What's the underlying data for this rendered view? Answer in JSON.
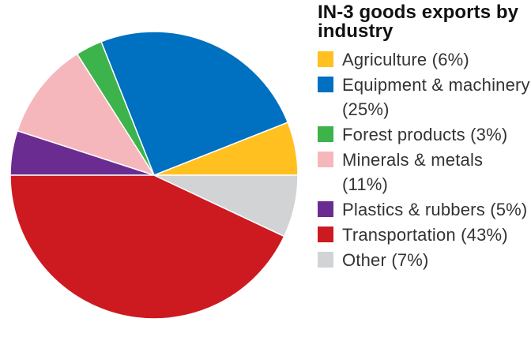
{
  "chart_data": {
    "type": "pie",
    "title": "IN-3 goods exports by industry",
    "slices": [
      {
        "label": "Agriculture (6%)",
        "value": 6,
        "color": "#FFC020"
      },
      {
        "label": "Equipment & machinery (25%)",
        "value": 25,
        "color": "#0070C0"
      },
      {
        "label": "Forest products (3%)",
        "value": 3,
        "color": "#3CB44B"
      },
      {
        "label": "Minerals & metals (11%)",
        "value": 11,
        "color": "#F6B7BC"
      },
      {
        "label": "Plastics & rubbers (5%)",
        "value": 5,
        "color": "#6A2C91"
      },
      {
        "label": "Transportation (43%)",
        "value": 43,
        "color": "#CC1A20"
      },
      {
        "label": "Other (7%)",
        "value": 7,
        "color": "#D1D3D5"
      }
    ],
    "start_angle_deg": 0,
    "direction": "counterclockwise"
  }
}
